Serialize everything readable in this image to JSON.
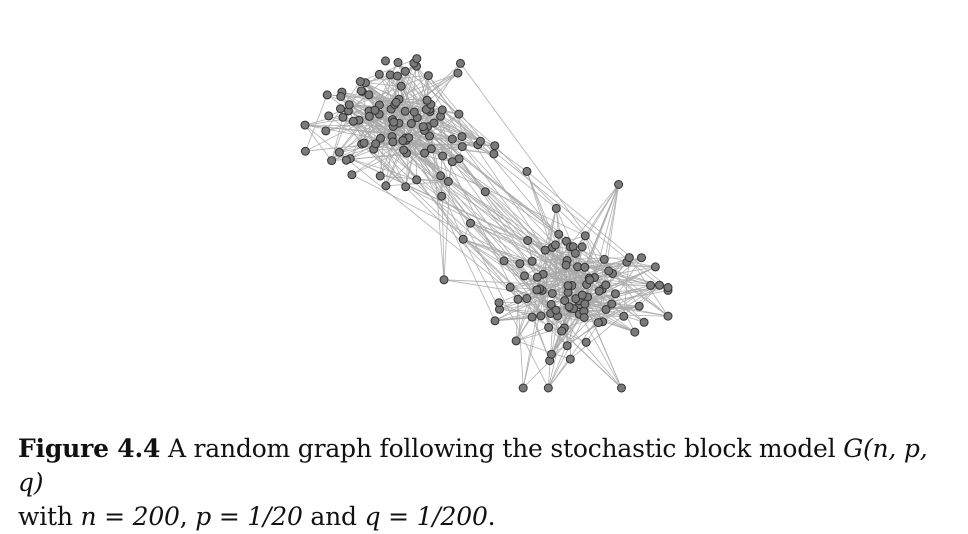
{
  "figure": {
    "label": "Figure 4.4",
    "caption_text_1": "A random graph following the stochastic block model",
    "caption_math_1": "G(n, p, q)",
    "caption_text_2": "with",
    "caption_math_2": "n = 200",
    "caption_text_3": ",",
    "caption_math_3": "p = 1/20",
    "caption_text_4": "and",
    "caption_math_4": "q = 1/200",
    "caption_text_5": "."
  },
  "graph": {
    "model": "stochastic-block-model",
    "n": 200,
    "p": 0.05,
    "q": 0.005,
    "blocks": 2,
    "edge_color": "#a9a9a9",
    "node_fill": "#7a7a7a",
    "node_stroke": "#333333"
  }
}
